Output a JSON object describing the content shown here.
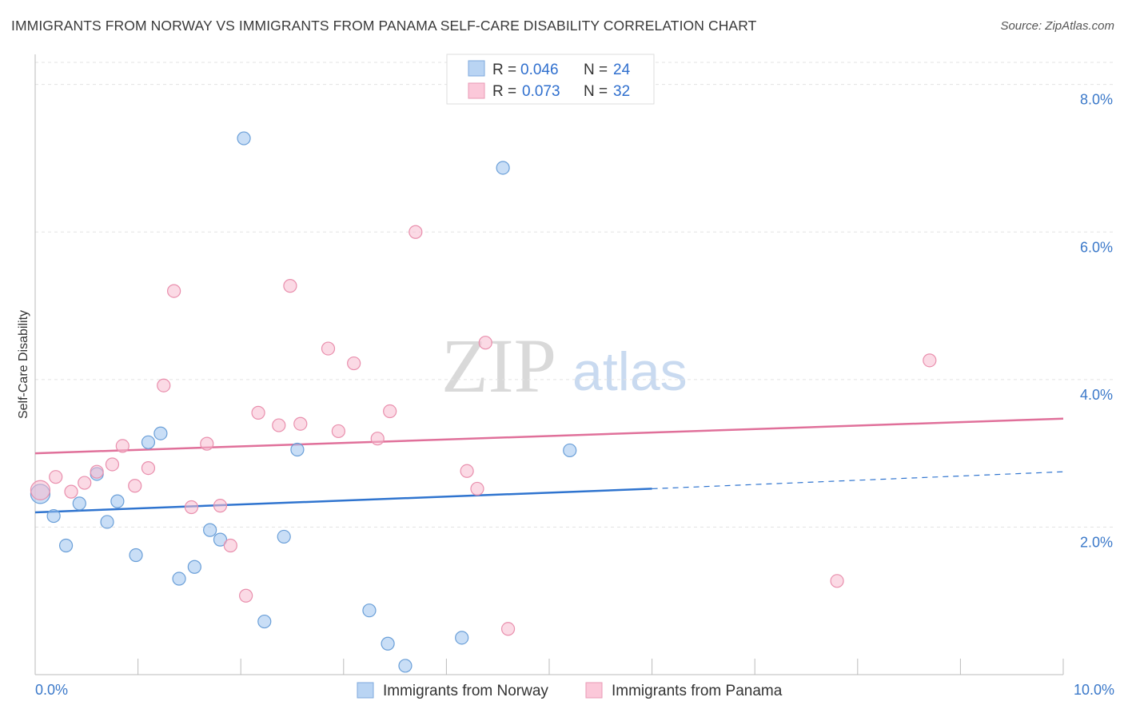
{
  "chart_data": {
    "type": "scatter",
    "title": "IMMIGRANTS FROM NORWAY VS IMMIGRANTS FROM PANAMA SELF-CARE DISABILITY CORRELATION CHART",
    "source": "Source: ZipAtlas.com",
    "ylabel": "Self-Care Disability",
    "xlabel": "",
    "xlim": [
      0,
      10
    ],
    "ylim": [
      0,
      8.3
    ],
    "x_tick_labels": [
      "0.0%",
      "10.0%"
    ],
    "y_ticks": [
      {
        "value": 2,
        "label": "2.0%"
      },
      {
        "value": 4,
        "label": "4.0%"
      },
      {
        "value": 6,
        "label": "6.0%"
      },
      {
        "value": 8,
        "label": "8.0%"
      }
    ],
    "watermark": {
      "zip": "ZIP",
      "atlas": "atlas"
    },
    "legend": [
      {
        "r_label": "R =",
        "r_value": "0.046",
        "n_label": "N =",
        "n_value": "24"
      },
      {
        "r_label": "R =",
        "r_value": "0.073",
        "n_label": "N =",
        "n_value": "32"
      }
    ],
    "series": [
      {
        "name": "Immigrants from Norway",
        "color": "#9dc3ee",
        "stroke": "#6a9fd8",
        "line_color": "#2f74cf",
        "trend": {
          "x0": 0,
          "y0": 2.2,
          "x1": 6.0,
          "y1": 2.52,
          "dash_to_x": 10,
          "dash_to_y": 2.75
        },
        "points": [
          [
            0.05,
            2.45
          ],
          [
            0.18,
            2.15
          ],
          [
            0.3,
            1.75
          ],
          [
            0.43,
            2.32
          ],
          [
            0.6,
            2.72
          ],
          [
            0.7,
            2.07
          ],
          [
            0.8,
            2.35
          ],
          [
            0.98,
            1.62
          ],
          [
            1.1,
            3.15
          ],
          [
            1.22,
            3.27
          ],
          [
            1.4,
            1.3
          ],
          [
            1.55,
            1.46
          ],
          [
            1.7,
            1.96
          ],
          [
            1.8,
            1.83
          ],
          [
            2.03,
            7.27
          ],
          [
            2.23,
            0.72
          ],
          [
            2.42,
            1.87
          ],
          [
            2.55,
            3.05
          ],
          [
            3.25,
            0.87
          ],
          [
            3.43,
            0.42
          ],
          [
            3.6,
            0.12
          ],
          [
            4.15,
            0.5
          ],
          [
            4.55,
            6.87
          ],
          [
            5.2,
            3.04
          ]
        ]
      },
      {
        "name": "Immigrants from Panama",
        "color": "#f8bcd0",
        "stroke": "#e98fad",
        "line_color": "#e0709a",
        "trend": {
          "x0": 0,
          "y0": 3.0,
          "x1": 10,
          "y1": 3.47
        },
        "points": [
          [
            0.05,
            2.5
          ],
          [
            0.2,
            2.68
          ],
          [
            0.35,
            2.48
          ],
          [
            0.48,
            2.6
          ],
          [
            0.6,
            2.75
          ],
          [
            0.75,
            2.85
          ],
          [
            0.85,
            3.1
          ],
          [
            0.97,
            2.56
          ],
          [
            1.1,
            2.8
          ],
          [
            1.25,
            3.92
          ],
          [
            1.35,
            5.2
          ],
          [
            1.52,
            2.27
          ],
          [
            1.67,
            3.13
          ],
          [
            1.8,
            2.29
          ],
          [
            1.9,
            1.75
          ],
          [
            2.05,
            1.07
          ],
          [
            2.17,
            3.55
          ],
          [
            2.37,
            3.38
          ],
          [
            2.48,
            5.27
          ],
          [
            2.58,
            3.4
          ],
          [
            2.85,
            4.42
          ],
          [
            2.95,
            3.3
          ],
          [
            3.1,
            4.22
          ],
          [
            3.33,
            3.2
          ],
          [
            3.45,
            3.57
          ],
          [
            3.7,
            6.0
          ],
          [
            4.2,
            2.76
          ],
          [
            4.3,
            2.52
          ],
          [
            4.38,
            4.5
          ],
          [
            4.6,
            0.62
          ],
          [
            7.8,
            1.27
          ],
          [
            8.7,
            4.26
          ]
        ]
      }
    ]
  }
}
